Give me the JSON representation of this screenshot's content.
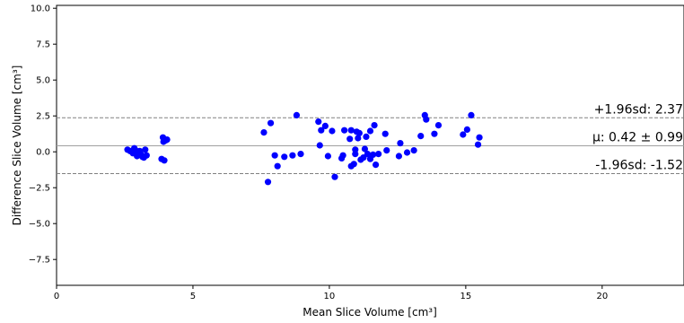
{
  "chart_data": {
    "type": "scatter",
    "title": "",
    "xlabel": "Mean Slice Volume [cm³]",
    "ylabel": "Difference Slice Volume [cm³]",
    "xlim": [
      0,
      23
    ],
    "ylim": [
      -9.3,
      10.2
    ],
    "xticks": [
      0,
      5,
      10,
      15,
      20
    ],
    "yticks": [
      -7.5,
      -5.0,
      -2.5,
      0.0,
      2.5,
      5.0,
      7.5,
      10.0
    ],
    "xtick_labels": [
      "0",
      "5",
      "10",
      "15",
      "20"
    ],
    "ytick_labels": [
      "−7.5",
      "−5.0",
      "−2.5",
      "0.0",
      "2.5",
      "5.0",
      "7.5",
      "10.0"
    ],
    "grid": false,
    "point_color": "#0000ff",
    "reference_lines": [
      {
        "name": "upper",
        "y": 2.37,
        "style": "dashed",
        "color": "#808080",
        "label": "+1.96sd: 2.37"
      },
      {
        "name": "mean",
        "y": 0.42,
        "style": "solid",
        "color": "#a0a0a0",
        "label": "μ: 0.42 ± 0.99"
      },
      {
        "name": "lower",
        "y": -1.52,
        "style": "dashed",
        "color": "#808080",
        "label": "-1.96sd: -1.52"
      }
    ],
    "points": [
      {
        "x": 2.6,
        "y": 0.15
      },
      {
        "x": 2.7,
        "y": 0.05
      },
      {
        "x": 2.8,
        "y": -0.1
      },
      {
        "x": 2.85,
        "y": 0.25
      },
      {
        "x": 2.9,
        "y": 0.1
      },
      {
        "x": 2.95,
        "y": -0.3
      },
      {
        "x": 3.0,
        "y": -0.15
      },
      {
        "x": 3.05,
        "y": 0.05
      },
      {
        "x": 3.1,
        "y": -0.2
      },
      {
        "x": 3.15,
        "y": -0.35
      },
      {
        "x": 3.2,
        "y": -0.4
      },
      {
        "x": 3.25,
        "y": 0.15
      },
      {
        "x": 3.3,
        "y": -0.25
      },
      {
        "x": 3.85,
        "y": -0.5
      },
      {
        "x": 3.9,
        "y": 1.0
      },
      {
        "x": 3.92,
        "y": 0.7
      },
      {
        "x": 3.95,
        "y": -0.6
      },
      {
        "x": 4.0,
        "y": 0.8
      },
      {
        "x": 4.05,
        "y": 0.85
      },
      {
        "x": 7.6,
        "y": 1.35
      },
      {
        "x": 7.75,
        "y": -2.1
      },
      {
        "x": 7.85,
        "y": 2.0
      },
      {
        "x": 8.0,
        "y": -0.25
      },
      {
        "x": 8.1,
        "y": -1.0
      },
      {
        "x": 8.35,
        "y": -0.35
      },
      {
        "x": 8.65,
        "y": -0.25
      },
      {
        "x": 8.8,
        "y": 2.55
      },
      {
        "x": 8.95,
        "y": -0.15
      },
      {
        "x": 9.6,
        "y": 2.1
      },
      {
        "x": 9.65,
        "y": 0.45
      },
      {
        "x": 9.7,
        "y": 1.5
      },
      {
        "x": 9.85,
        "y": 1.8
      },
      {
        "x": 9.95,
        "y": -0.3
      },
      {
        "x": 10.1,
        "y": 1.45
      },
      {
        "x": 10.2,
        "y": -1.75
      },
      {
        "x": 10.45,
        "y": -0.45
      },
      {
        "x": 10.5,
        "y": -0.25
      },
      {
        "x": 10.55,
        "y": 1.5
      },
      {
        "x": 10.75,
        "y": 0.9
      },
      {
        "x": 10.8,
        "y": 1.5
      },
      {
        "x": 10.8,
        "y": -1.0
      },
      {
        "x": 10.9,
        "y": -0.85
      },
      {
        "x": 10.95,
        "y": -0.15
      },
      {
        "x": 10.95,
        "y": 0.15
      },
      {
        "x": 11.0,
        "y": 1.4
      },
      {
        "x": 11.05,
        "y": 0.95
      },
      {
        "x": 11.1,
        "y": 1.3
      },
      {
        "x": 11.15,
        "y": -0.55
      },
      {
        "x": 11.25,
        "y": -0.4
      },
      {
        "x": 11.3,
        "y": 0.2
      },
      {
        "x": 11.35,
        "y": 1.05
      },
      {
        "x": 11.4,
        "y": -0.15
      },
      {
        "x": 11.5,
        "y": -0.5
      },
      {
        "x": 11.5,
        "y": 1.45
      },
      {
        "x": 11.6,
        "y": -0.2
      },
      {
        "x": 11.65,
        "y": 1.85
      },
      {
        "x": 11.7,
        "y": -0.9
      },
      {
        "x": 11.8,
        "y": -0.15
      },
      {
        "x": 12.05,
        "y": 1.25
      },
      {
        "x": 12.1,
        "y": 0.1
      },
      {
        "x": 12.55,
        "y": -0.3
      },
      {
        "x": 12.6,
        "y": 0.6
      },
      {
        "x": 12.85,
        "y": -0.05
      },
      {
        "x": 13.1,
        "y": 0.1
      },
      {
        "x": 13.35,
        "y": 1.1
      },
      {
        "x": 13.5,
        "y": 2.55
      },
      {
        "x": 13.55,
        "y": 2.25
      },
      {
        "x": 13.85,
        "y": 1.25
      },
      {
        "x": 14.0,
        "y": 1.85
      },
      {
        "x": 14.9,
        "y": 1.2
      },
      {
        "x": 15.05,
        "y": 1.55
      },
      {
        "x": 15.2,
        "y": 2.55
      },
      {
        "x": 15.45,
        "y": 0.5
      },
      {
        "x": 15.5,
        "y": 1.0
      }
    ]
  }
}
